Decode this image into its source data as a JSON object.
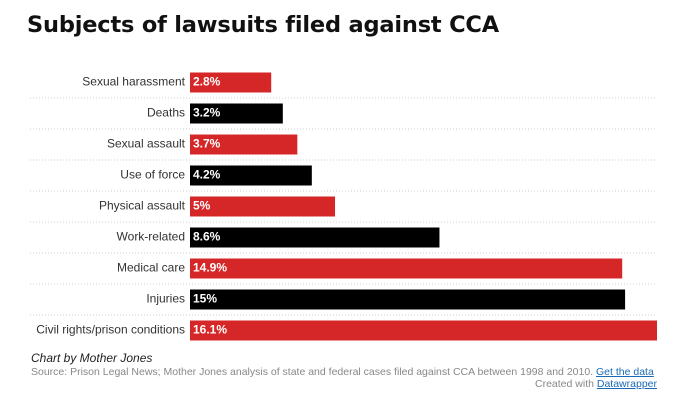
{
  "title": "Subjects of lawsuits filed against CCA",
  "chart_data": {
    "type": "bar",
    "orientation": "horizontal",
    "categories": [
      "Sexual harassment",
      "Deaths",
      "Sexual assault",
      "Use of force",
      "Physical assault",
      "Work-related",
      "Medical care",
      "Injuries",
      "Civil rights/prison conditions"
    ],
    "values": [
      2.8,
      3.2,
      3.7,
      4.2,
      5,
      8.6,
      14.9,
      15,
      16.1
    ],
    "value_labels": [
      "2.8%",
      "3.2%",
      "3.7%",
      "4.2%",
      "5%",
      "8.6%",
      "14.9%",
      "15%",
      "16.1%"
    ],
    "bar_colors": [
      "#d62728",
      "#000000",
      "#d62728",
      "#000000",
      "#d62728",
      "#000000",
      "#d62728",
      "#000000",
      "#d62728"
    ],
    "xlim": [
      0,
      16.1
    ],
    "grid": false
  },
  "colors": {
    "red": "#d62728",
    "black": "#000000",
    "link": "#1a6bb5"
  },
  "footer": {
    "byline": "Chart by Mother Jones",
    "source_text": "Source: Prison Legal News; Mother Jones analysis of state and federal cases filed against CCA between 1998 and 2010.",
    "get_data_label": "Get the data",
    "created_with_label": "Created with",
    "datawrapper_label": "Datawrapper"
  }
}
